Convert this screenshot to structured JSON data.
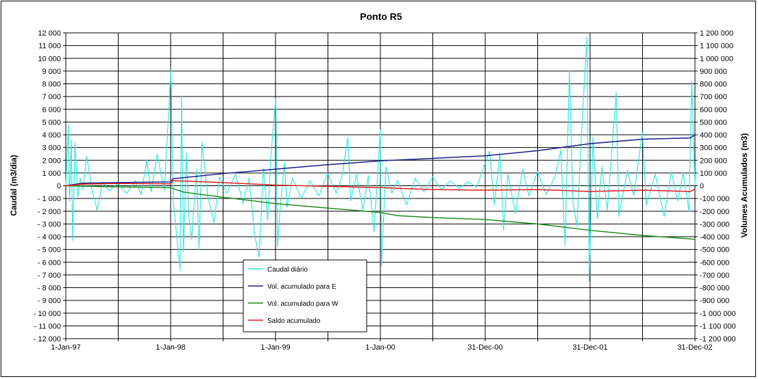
{
  "chart_data": {
    "type": "line",
    "title": "Ponto R5",
    "ylabel": "Caudal (m3/dia)",
    "y2label": "Volumes Acumulados (m3)",
    "xlabel": "",
    "x_ticks": [
      "1-Jan-97",
      "1-Jan-98",
      "1-Jan-99",
      "1-Jan-00",
      "31-Dec-00",
      "31-Dec-01",
      "31-Dec-02"
    ],
    "x_range": [
      "1997-01-01",
      "2002-12-31"
    ],
    "ylim": [
      -12000,
      12000
    ],
    "y2lim": [
      -1200000,
      1200000
    ],
    "y_ticks": [
      "12 000",
      "11 000",
      "10 000",
      "9 000",
      "8 000",
      "7 000",
      "6 000",
      "5 000",
      "4 000",
      "3 000",
      "2 000",
      "1 000",
      "0",
      "- 1 000",
      "- 2 000",
      "- 3 000",
      "- 4 000",
      "- 5 000",
      "- 6 000",
      "- 7 000",
      "- 8 000",
      "- 9 000",
      "- 10 000",
      "- 11 000",
      "- 12 000"
    ],
    "y2_ticks": [
      "1 200 000",
      "1 100 000",
      "1 000 000",
      "900 000",
      "800 000",
      "700 000",
      "600 000",
      "500 000",
      "400 000",
      "300 000",
      "200 000",
      "100 000",
      "0",
      "-100 000",
      "-200 000",
      "-300 000",
      "-400 000",
      "-500 000",
      "-600 000",
      "-700 000",
      "-800 000",
      "-900 000",
      "-1 000 000",
      "-1 100 000",
      "-1 200 000"
    ],
    "grid": true,
    "legend_position": "bottom-center",
    "series": [
      {
        "name": "Caudal diário",
        "axis": "left",
        "color": "#33e6e6",
        "points": [
          [
            "1997-01-01",
            0
          ],
          [
            "1997-01-10",
            4800
          ],
          [
            "1997-01-14",
            -1200
          ],
          [
            "1997-01-20",
            3600
          ],
          [
            "1997-01-25",
            -4300
          ],
          [
            "1997-02-02",
            3400
          ],
          [
            "1997-02-12",
            -900
          ],
          [
            "1997-02-20",
            600
          ],
          [
            "1997-03-01",
            -300
          ],
          [
            "1997-03-15",
            2300
          ],
          [
            "1997-04-01",
            -200
          ],
          [
            "1997-04-20",
            -1900
          ],
          [
            "1997-05-10",
            300
          ],
          [
            "1997-06-01",
            -400
          ],
          [
            "1997-07-01",
            200
          ],
          [
            "1997-08-01",
            -600
          ],
          [
            "1997-09-01",
            400
          ],
          [
            "1997-09-20",
            -700
          ],
          [
            "1997-10-10",
            2000
          ],
          [
            "1997-10-25",
            -500
          ],
          [
            "1997-11-15",
            2500
          ],
          [
            "1997-12-10",
            -400
          ],
          [
            "1998-01-02",
            9100
          ],
          [
            "1998-01-10",
            -1200
          ],
          [
            "1998-01-20",
            -3400
          ],
          [
            "1998-02-03",
            -6600
          ],
          [
            "1998-02-08",
            7000
          ],
          [
            "1998-02-15",
            -5200
          ],
          [
            "1998-02-25",
            2600
          ],
          [
            "1998-03-05",
            -2400
          ],
          [
            "1998-03-15",
            -4200
          ],
          [
            "1998-04-01",
            1300
          ],
          [
            "1998-04-10",
            -5000
          ],
          [
            "1998-04-20",
            3400
          ],
          [
            "1998-05-10",
            -800
          ],
          [
            "1998-06-01",
            -2900
          ],
          [
            "1998-06-20",
            700
          ],
          [
            "1998-07-15",
            -600
          ],
          [
            "1998-08-15",
            900
          ],
          [
            "1998-09-10",
            -1400
          ],
          [
            "1998-10-01",
            600
          ],
          [
            "1998-10-20",
            -3800
          ],
          [
            "1998-11-05",
            -5600
          ],
          [
            "1998-11-20",
            1400
          ],
          [
            "1998-12-05",
            -2700
          ],
          [
            "1998-12-15",
            2100
          ],
          [
            "1999-01-02",
            6900
          ],
          [
            "1999-01-08",
            -4800
          ],
          [
            "1999-01-15",
            -2400
          ],
          [
            "1999-02-01",
            1800
          ],
          [
            "1999-02-10",
            -1700
          ],
          [
            "1999-03-01",
            600
          ],
          [
            "1999-04-01",
            -1000
          ],
          [
            "1999-05-01",
            400
          ],
          [
            "1999-06-01",
            -800
          ],
          [
            "1999-07-01",
            1000
          ],
          [
            "1999-08-01",
            -600
          ],
          [
            "1999-08-20",
            700
          ],
          [
            "1999-09-10",
            3800
          ],
          [
            "1999-09-20",
            -1200
          ],
          [
            "1999-10-10",
            900
          ],
          [
            "1999-11-01",
            -1900
          ],
          [
            "1999-11-20",
            800
          ],
          [
            "1999-12-10",
            -3600
          ],
          [
            "2000-01-01",
            4400
          ],
          [
            "2000-01-05",
            -6300
          ],
          [
            "2000-01-20",
            1500
          ],
          [
            "2000-02-10",
            -600
          ],
          [
            "2000-03-01",
            400
          ],
          [
            "2000-04-01",
            -1500
          ],
          [
            "2000-05-01",
            600
          ],
          [
            "2000-06-01",
            -500
          ],
          [
            "2000-07-01",
            700
          ],
          [
            "2000-08-01",
            -300
          ],
          [
            "2000-09-01",
            400
          ],
          [
            "2000-10-01",
            -200
          ],
          [
            "2000-11-01",
            300
          ],
          [
            "2000-12-01",
            -100
          ],
          [
            "2001-01-15",
            2700
          ],
          [
            "2001-02-01",
            -1500
          ],
          [
            "2001-02-20",
            2600
          ],
          [
            "2001-03-05",
            -3500
          ],
          [
            "2001-03-20",
            900
          ],
          [
            "2001-04-15",
            -2200
          ],
          [
            "2001-05-10",
            1300
          ],
          [
            "2001-06-01",
            -800
          ],
          [
            "2001-07-01",
            1100
          ],
          [
            "2001-08-01",
            -700
          ],
          [
            "2001-09-01",
            800
          ],
          [
            "2001-09-20",
            2800
          ],
          [
            "2001-10-05",
            -4700
          ],
          [
            "2001-10-20",
            9000
          ],
          [
            "2001-11-01",
            -1200
          ],
          [
            "2001-11-15",
            -3200
          ],
          [
            "2001-12-01",
            4000
          ],
          [
            "2001-12-20",
            11700
          ],
          [
            "2001-12-28",
            -7500
          ],
          [
            "2002-01-10",
            3800
          ],
          [
            "2002-01-25",
            -2600
          ],
          [
            "2002-02-10",
            1500
          ],
          [
            "2002-03-01",
            -1900
          ],
          [
            "2002-04-01",
            7300
          ],
          [
            "2002-04-10",
            -2400
          ],
          [
            "2002-05-10",
            1200
          ],
          [
            "2002-06-01",
            -800
          ],
          [
            "2002-07-01",
            4200
          ],
          [
            "2002-07-15",
            -1500
          ],
          [
            "2002-08-15",
            900
          ],
          [
            "2002-09-15",
            -2400
          ],
          [
            "2002-10-10",
            1100
          ],
          [
            "2002-11-01",
            -1200
          ],
          [
            "2002-11-20",
            1000
          ],
          [
            "2002-12-10",
            -2000
          ],
          [
            "2002-12-20",
            8200
          ],
          [
            "2002-12-31",
            0
          ]
        ]
      },
      {
        "name": "Vol. acumulado para E",
        "axis": "right",
        "color": "#1a1a8c",
        "points": [
          [
            "1997-01-01",
            0
          ],
          [
            "1997-03-01",
            20000
          ],
          [
            "1997-07-01",
            25000
          ],
          [
            "1997-12-31",
            30000
          ],
          [
            "1998-01-10",
            55000
          ],
          [
            "1998-07-01",
            95000
          ],
          [
            "1999-01-01",
            130000
          ],
          [
            "1999-07-01",
            165000
          ],
          [
            "2000-01-01",
            195000
          ],
          [
            "2000-07-01",
            215000
          ],
          [
            "2000-12-31",
            235000
          ],
          [
            "2001-07-01",
            275000
          ],
          [
            "2001-12-31",
            330000
          ],
          [
            "2002-07-01",
            365000
          ],
          [
            "2002-12-15",
            375000
          ],
          [
            "2002-12-31",
            400000
          ]
        ]
      },
      {
        "name": "Vol. acumulado para W",
        "axis": "right",
        "color": "#1f8c1f",
        "points": [
          [
            "1997-01-01",
            0
          ],
          [
            "1997-06-01",
            -8000
          ],
          [
            "1997-12-31",
            -15000
          ],
          [
            "1998-02-15",
            -50000
          ],
          [
            "1998-07-01",
            -90000
          ],
          [
            "1999-01-01",
            -140000
          ],
          [
            "1999-07-01",
            -175000
          ],
          [
            "2000-01-01",
            -210000
          ],
          [
            "2000-03-01",
            -235000
          ],
          [
            "2000-07-01",
            -250000
          ],
          [
            "2000-12-31",
            -265000
          ],
          [
            "2001-07-01",
            -300000
          ],
          [
            "2001-12-31",
            -350000
          ],
          [
            "2002-07-01",
            -390000
          ],
          [
            "2002-12-31",
            -420000
          ]
        ]
      },
      {
        "name": "Saldo acumulado",
        "axis": "right",
        "color": "#e61a1a",
        "points": [
          [
            "1997-01-01",
            0
          ],
          [
            "1997-03-01",
            12000
          ],
          [
            "1997-07-01",
            18000
          ],
          [
            "1997-12-31",
            15000
          ],
          [
            "1998-01-10",
            40000
          ],
          [
            "1998-07-01",
            25000
          ],
          [
            "1999-01-01",
            5000
          ],
          [
            "1999-07-01",
            -5000
          ],
          [
            "2000-01-01",
            -15000
          ],
          [
            "2000-07-01",
            -30000
          ],
          [
            "2000-12-31",
            -35000
          ],
          [
            "2001-07-01",
            -30000
          ],
          [
            "2001-12-31",
            -45000
          ],
          [
            "2002-07-01",
            -35000
          ],
          [
            "2002-12-15",
            -45000
          ],
          [
            "2002-12-31",
            -25000
          ]
        ]
      }
    ]
  }
}
